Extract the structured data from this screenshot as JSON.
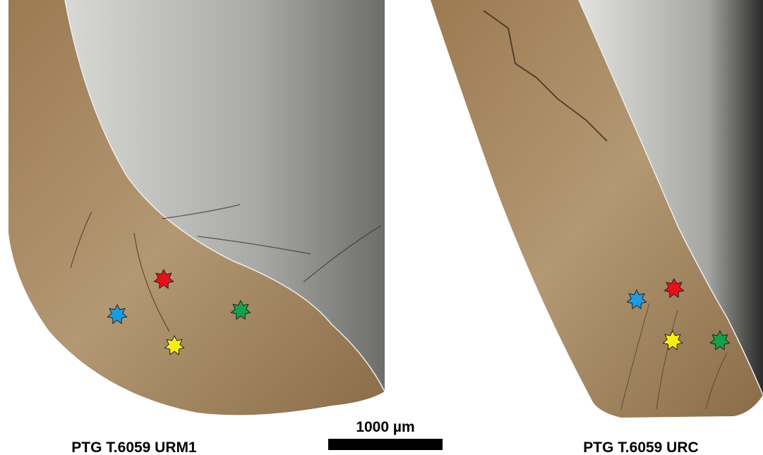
{
  "panels": [
    {
      "label": "PTG T.6059 URM1"
    },
    {
      "label": "PTG T.6059 URC"
    }
  ],
  "scale_bar": {
    "label": "1000 µm"
  }
}
